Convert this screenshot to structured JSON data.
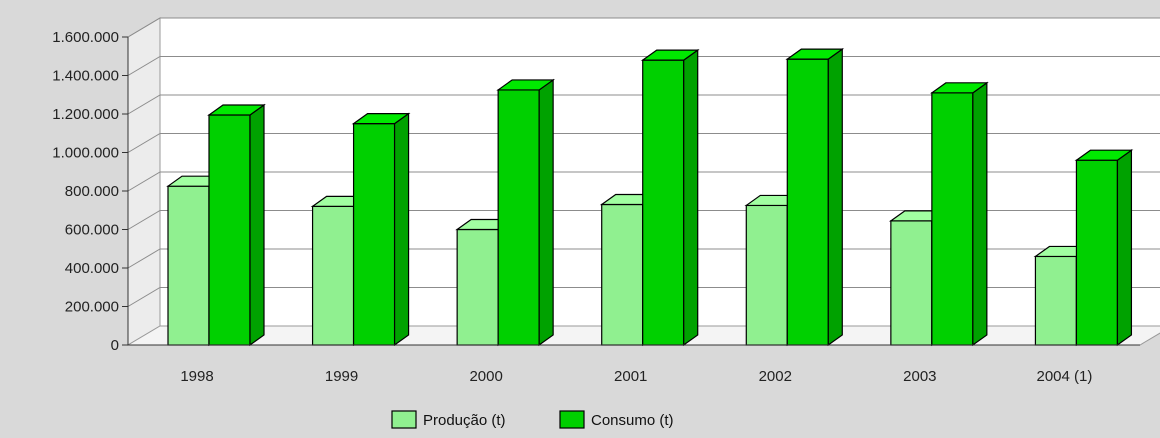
{
  "chart_data": {
    "type": "bar",
    "categories": [
      "1998",
      "1999",
      "2000",
      "2001",
      "2002",
      "2003",
      "2004 (1)"
    ],
    "series": [
      {
        "name": "Produção (t)",
        "values": [
          825000,
          720000,
          600000,
          730000,
          725000,
          645000,
          460000
        ],
        "color": "#90f090"
      },
      {
        "name": "Consumo (t)",
        "values": [
          1195000,
          1150000,
          1325000,
          1480000,
          1485000,
          1310000,
          960000
        ],
        "color": "#00d000"
      }
    ],
    "y_ticks": [
      "0",
      "200.000",
      "400.000",
      "600.000",
      "800.000",
      "1.000.000",
      "1.200.000",
      "1.400.000",
      "1.600.000"
    ],
    "ylim": [
      0,
      1600000
    ],
    "grid": true,
    "legend_position": "bottom",
    "three_d": true,
    "colors": {
      "background": "#d9d9d9",
      "plot_back_wall": "#ffffff",
      "plot_floor": "#f4f4f4",
      "grid": "#8c8c8c"
    }
  }
}
